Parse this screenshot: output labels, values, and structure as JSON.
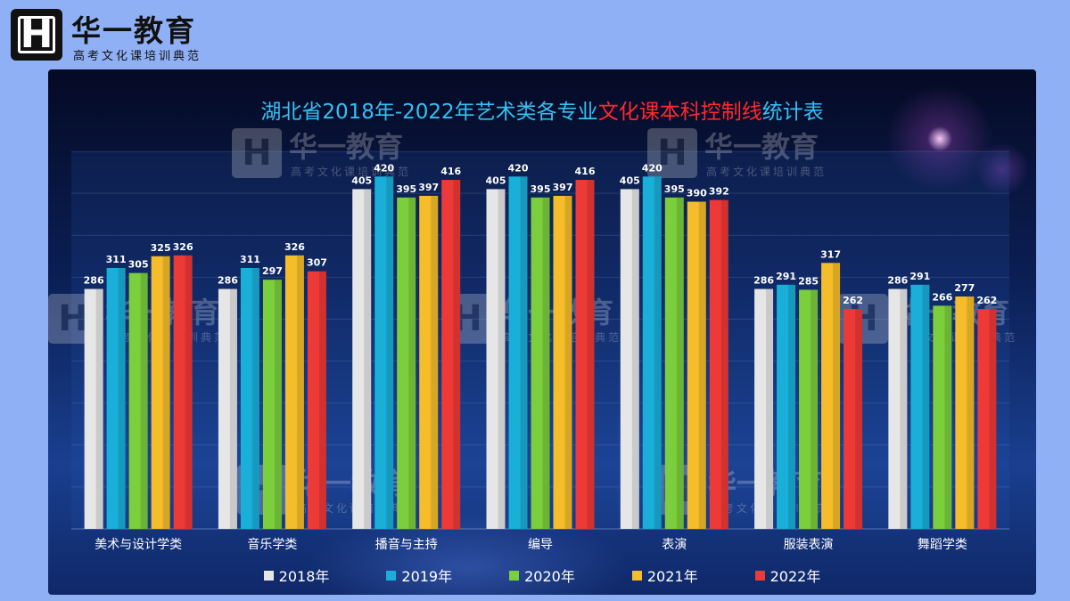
{
  "brand": {
    "mark": "H",
    "name": "华一教育",
    "subtitle": "高考文化课培训典范"
  },
  "watermark": {
    "mark": "H",
    "name": "华一教育",
    "subtitle": "高考文化课培训典范"
  },
  "chart_data": {
    "type": "bar",
    "title_parts": [
      "湖北省2018年-2022年艺术类各专业",
      "文化课本科控制线",
      "统计表"
    ],
    "categories": [
      "美术与设计学类",
      "音乐学类",
      "播音与主持",
      "编导",
      "表演",
      "服装表演",
      "舞蹈学类"
    ],
    "series": [
      {
        "name": "2018年",
        "color": "#e6e6e6",
        "values": [
          286,
          286,
          405,
          405,
          405,
          286,
          286
        ]
      },
      {
        "name": "2019年",
        "color": "#1aafd8",
        "values": [
          311,
          311,
          420,
          420,
          420,
          291,
          291
        ]
      },
      {
        "name": "2020年",
        "color": "#7ccf3c",
        "values": [
          305,
          297,
          395,
          395,
          395,
          285,
          266
        ]
      },
      {
        "name": "2021年",
        "color": "#f5bd2a",
        "values": [
          325,
          326,
          397,
          397,
          390,
          317,
          277
        ]
      },
      {
        "name": "2022年",
        "color": "#ee3a36",
        "values": [
          326,
          307,
          416,
          416,
          392,
          262,
          262
        ]
      }
    ],
    "xlabel": "",
    "ylabel": "",
    "ylim": [
      0,
      450
    ],
    "grid": true,
    "legend": "bottom"
  }
}
